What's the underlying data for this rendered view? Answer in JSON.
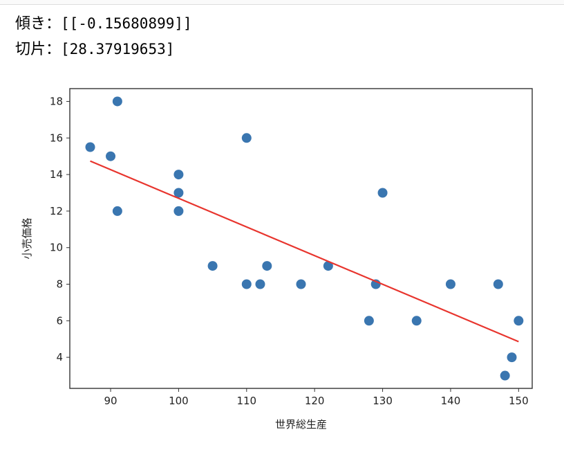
{
  "output": {
    "slope_label": "傾き：",
    "slope_value": "[[-0.15680899]]",
    "intercept_label": "切片：",
    "intercept_value": "[28.37919653]"
  },
  "colors": {
    "points": "#3a76b0",
    "regression_line": "#e8352e",
    "axes": "#333333"
  },
  "chart_data": {
    "type": "scatter",
    "title": "",
    "xlabel": "世界総生産",
    "ylabel": "小売価格",
    "xlim": [
      84,
      152
    ],
    "ylim": [
      2.3,
      18.7
    ],
    "xticks": [
      90,
      100,
      110,
      120,
      130,
      140,
      150
    ],
    "yticks": [
      4,
      6,
      8,
      10,
      12,
      14,
      16,
      18
    ],
    "grid": false,
    "legend": "none",
    "points": [
      {
        "x": 87,
        "y": 15.5
      },
      {
        "x": 90,
        "y": 15
      },
      {
        "x": 91,
        "y": 18
      },
      {
        "x": 91,
        "y": 12
      },
      {
        "x": 100,
        "y": 14
      },
      {
        "x": 100,
        "y": 13
      },
      {
        "x": 100,
        "y": 12
      },
      {
        "x": 105,
        "y": 9
      },
      {
        "x": 110,
        "y": 16
      },
      {
        "x": 110,
        "y": 8
      },
      {
        "x": 112,
        "y": 8
      },
      {
        "x": 113,
        "y": 9
      },
      {
        "x": 118,
        "y": 8
      },
      {
        "x": 122,
        "y": 9
      },
      {
        "x": 128,
        "y": 6
      },
      {
        "x": 129,
        "y": 8
      },
      {
        "x": 130,
        "y": 13
      },
      {
        "x": 135,
        "y": 6
      },
      {
        "x": 140,
        "y": 8
      },
      {
        "x": 147,
        "y": 8
      },
      {
        "x": 148,
        "y": 3
      },
      {
        "x": 149,
        "y": 4
      },
      {
        "x": 150,
        "y": 6
      }
    ],
    "regression": {
      "slope": -0.15680899,
      "intercept": 28.37919653,
      "x_range": [
        87,
        150
      ]
    }
  }
}
